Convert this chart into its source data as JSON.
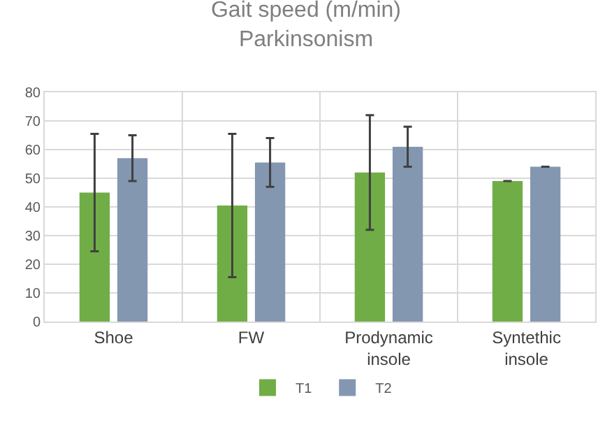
{
  "chart_data": {
    "type": "bar",
    "title": "Gait speed (m/min)",
    "subtitle": "Parkinsonism",
    "categories": [
      "Shoe",
      "FW",
      "Prodynamic insole",
      "Syntethic insole"
    ],
    "series": [
      {
        "name": "T1",
        "color": "#70ad47",
        "values": [
          45,
          40.5,
          52,
          49
        ],
        "errors": [
          20.5,
          25,
          20,
          0
        ]
      },
      {
        "name": "T2",
        "color": "#8497b0",
        "values": [
          57,
          55.5,
          61,
          54
        ],
        "errors": [
          8,
          8.5,
          7,
          0
        ]
      }
    ],
    "ylim": [
      0,
      80
    ],
    "yticks": [
      0,
      10,
      20,
      30,
      40,
      50,
      60,
      70,
      80
    ],
    "grid": true,
    "legend": "bottom"
  }
}
